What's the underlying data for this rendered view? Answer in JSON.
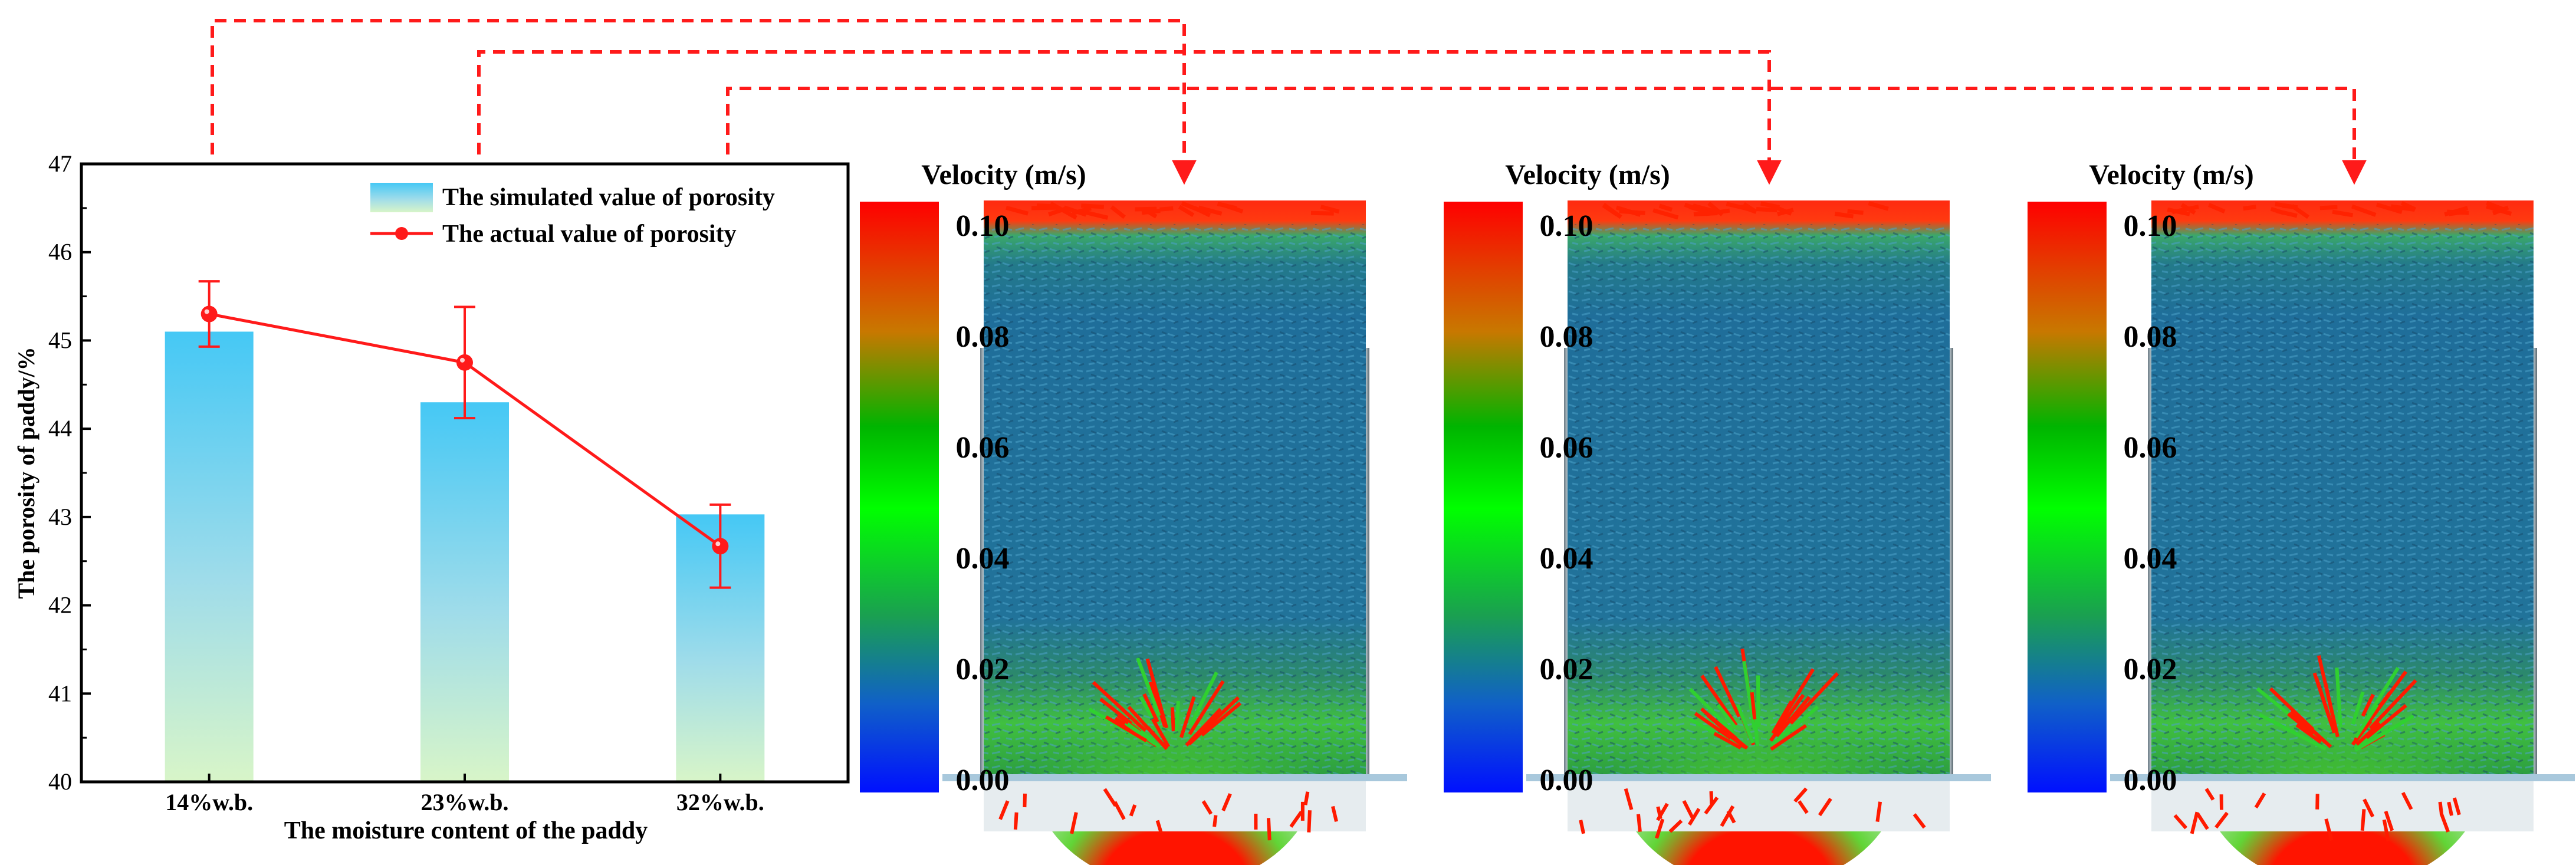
{
  "colors": {
    "accent": "#ff1a1a",
    "bar_top": "#45c8f5",
    "bar_bottom": "#d8f5c8",
    "particle_blue": "#1f6e9a",
    "velocity_high": "#ff0000",
    "velocity_mid": "#00e000",
    "velocity_low": "#0010ff"
  },
  "chart_data": {
    "type": "bar",
    "title": "",
    "xlabel": "The moisture content of the paddy",
    "ylabel": "The porosity of paddy/%",
    "ylim": [
      40,
      47
    ],
    "yticks": [
      "40",
      "41",
      "42",
      "43",
      "44",
      "45",
      "46",
      "47"
    ],
    "categories": [
      "14%w.b.",
      "23%w.b.",
      "32%w.b."
    ],
    "series": [
      {
        "name": "The simulated value of porosity",
        "kind": "bar",
        "values": [
          45.1,
          44.3,
          43.03
        ]
      },
      {
        "name": "The actual value of porosity",
        "kind": "line",
        "values": [
          45.3,
          44.75,
          42.67
        ],
        "error_low": [
          44.93,
          44.12,
          42.2
        ],
        "error_high": [
          45.67,
          45.38,
          43.14
        ]
      }
    ],
    "legend_position": "top-right"
  },
  "simulations": [
    {
      "colorbar_title": "Velocity (m/s)",
      "ticks": [
        "0.10",
        "0.08",
        "0.06",
        "0.04",
        "0.02",
        "0.00"
      ]
    },
    {
      "colorbar_title": "Velocity (m/s)",
      "ticks": [
        "0.10",
        "0.08",
        "0.06",
        "0.04",
        "0.02",
        "0.00"
      ]
    },
    {
      "colorbar_title": "Velocity (m/s)",
      "ticks": [
        "0.10",
        "0.08",
        "0.06",
        "0.04",
        "0.02",
        "0.00"
      ]
    }
  ]
}
